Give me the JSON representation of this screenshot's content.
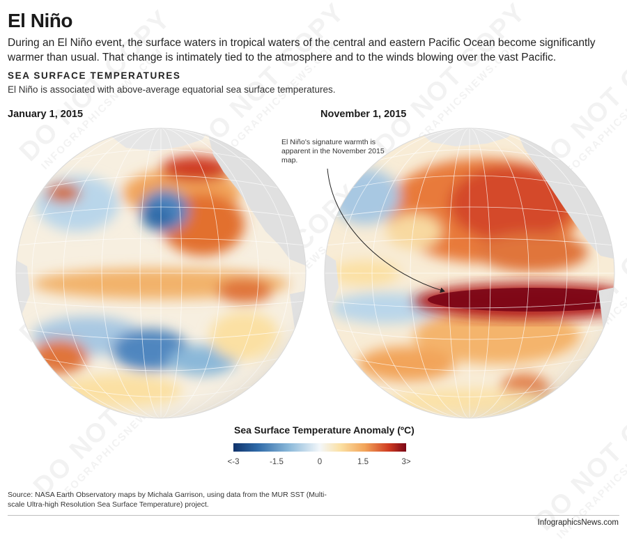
{
  "title": "El Niño",
  "intro": "During an El Niño event, the surface waters in tropical waters of the central and eastern Pacific Ocean become significantly warmer than usual. That change is intimately tied to the atmosphere and to the winds blowing over the vast Pacific.",
  "section": {
    "title": "SEA SURFACE TEMPERATURES",
    "subtitle": "El Niño is associated with above-average equatorial sea surface temperatures."
  },
  "maps": [
    {
      "label": "January 1, 2015"
    },
    {
      "label": "November 1, 2015"
    }
  ],
  "annotation": "El Niño's signature warmth is apparent in the November 2015 map.",
  "legend": {
    "title": "Sea Surface Temperature Anomaly (ºC)",
    "ticks": [
      "<-3",
      "-1.5",
      "0",
      "1.5",
      "3>"
    ],
    "colors": [
      "#10336b",
      "#2f6aa8",
      "#8ab8d9",
      "#f3f7fa",
      "#fbe0a3",
      "#f2a45a",
      "#cf3b21",
      "#7a0616"
    ]
  },
  "source": "Source: NASA Earth Observatory maps by Michala Garrison, using data from the MUR SST (Multi-scale Ultra-high Resolution Sea Surface Temperature) project.",
  "brand": "InfographicsNews.com",
  "watermark": {
    "primary": "DO NOT COPY",
    "secondary": "INFOGRAPHICSNEWS.COM"
  }
}
